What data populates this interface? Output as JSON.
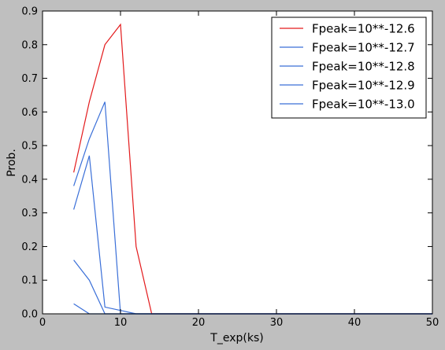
{
  "chart_data": {
    "type": "line",
    "xlabel": "T_exp(ks)",
    "ylabel": "Prob.",
    "xlim": [
      0,
      50
    ],
    "ylim": [
      0,
      0.9
    ],
    "xticks": [
      0,
      10,
      20,
      30,
      40,
      50
    ],
    "xtick_labels": [
      "0",
      "10",
      "20",
      "30",
      "40",
      "50"
    ],
    "yticks": [
      0.0,
      0.1,
      0.2,
      0.3,
      0.4,
      0.5,
      0.6,
      0.7,
      0.8,
      0.9
    ],
    "ytick_labels": [
      "0.0",
      "0.1",
      "0.2",
      "0.3",
      "0.4",
      "0.5",
      "0.6",
      "0.7",
      "0.8",
      "0.9"
    ],
    "grid": false,
    "legend_position": "top-right",
    "series": [
      {
        "name": "Fpeak=10**-12.6",
        "color": "#e31a1c",
        "x": [
          4,
          6,
          8,
          10,
          12,
          14,
          16,
          18,
          20,
          25,
          30,
          35,
          40,
          45,
          50
        ],
        "y": [
          0.42,
          0.63,
          0.8,
          0.86,
          0.2,
          0.0,
          0.0,
          0.0,
          0.0,
          0.0,
          0.0,
          0.0,
          0.0,
          0.0,
          0.0
        ]
      },
      {
        "name": "Fpeak=10**-12.7",
        "color": "#3a6fd8",
        "x": [
          4,
          6,
          8,
          10,
          12,
          14,
          16,
          18,
          20,
          25,
          30,
          35,
          40,
          45,
          50
        ],
        "y": [
          0.38,
          0.52,
          0.63,
          0.0,
          0.0,
          0.0,
          0.0,
          0.0,
          0.0,
          0.0,
          0.0,
          0.0,
          0.0,
          0.0,
          0.0
        ]
      },
      {
        "name": "Fpeak=10**-12.8",
        "color": "#3a6fd8",
        "x": [
          4,
          6,
          8,
          10,
          12,
          14,
          16,
          18,
          20,
          25,
          30,
          35,
          40,
          45,
          50
        ],
        "y": [
          0.31,
          0.47,
          0.02,
          0.01,
          0.0,
          0.0,
          0.0,
          0.0,
          0.0,
          0.0,
          0.0,
          0.0,
          0.0,
          0.0,
          0.0
        ]
      },
      {
        "name": "Fpeak=10**-12.9",
        "color": "#3a6fd8",
        "x": [
          4,
          6,
          8,
          10,
          12,
          14,
          16,
          18,
          20,
          25,
          30,
          35,
          40,
          45,
          50
        ],
        "y": [
          0.16,
          0.1,
          0.0,
          0.0,
          0.0,
          0.0,
          0.0,
          0.0,
          0.0,
          0.0,
          0.0,
          0.0,
          0.0,
          0.0,
          0.0
        ]
      },
      {
        "name": "Fpeak=10**-13.0",
        "color": "#3a6fd8",
        "x": [
          4,
          6,
          8,
          10,
          12,
          14,
          16,
          18,
          20,
          25,
          30,
          35,
          40,
          45,
          50
        ],
        "y": [
          0.03,
          0.0,
          0.0,
          0.0,
          0.0,
          0.0,
          0.0,
          0.0,
          0.0,
          0.0,
          0.0,
          0.0,
          0.0,
          0.0,
          0.0
        ]
      }
    ]
  }
}
